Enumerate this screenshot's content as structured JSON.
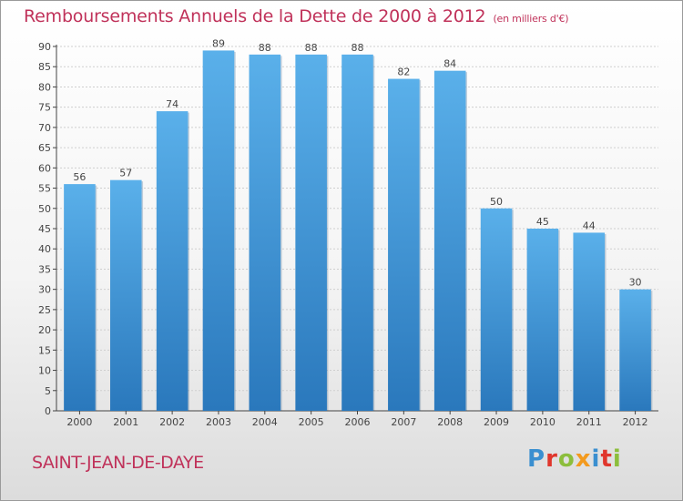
{
  "header": {
    "title": "Remboursements Annuels de la Dette de 2000 à 2012",
    "subtitle": "(en milliers d'€)"
  },
  "footer": {
    "commune": "SAINT-JEAN-DE-DAYE",
    "logo": "Proxiti"
  },
  "colors": {
    "bar_top": "#5ab0ea",
    "bar_bottom": "#2a78bc",
    "text_accent": "#c0325a"
  },
  "chart_data": {
    "type": "bar",
    "title": "Remboursements Annuels de la Dette de 2000 à 2012",
    "subtitle": "(en milliers d'€)",
    "categories": [
      "2000",
      "2001",
      "2002",
      "2003",
      "2004",
      "2005",
      "2006",
      "2007",
      "2008",
      "2009",
      "2010",
      "2011",
      "2012"
    ],
    "values": [
      56,
      57,
      74,
      89,
      88,
      88,
      88,
      82,
      84,
      50,
      45,
      44,
      30
    ],
    "ylim": [
      0,
      90
    ],
    "yticks": [
      0,
      5,
      10,
      15,
      20,
      25,
      30,
      35,
      40,
      45,
      50,
      55,
      60,
      65,
      70,
      75,
      80,
      85,
      90
    ],
    "grid": true,
    "data_labels": true
  }
}
